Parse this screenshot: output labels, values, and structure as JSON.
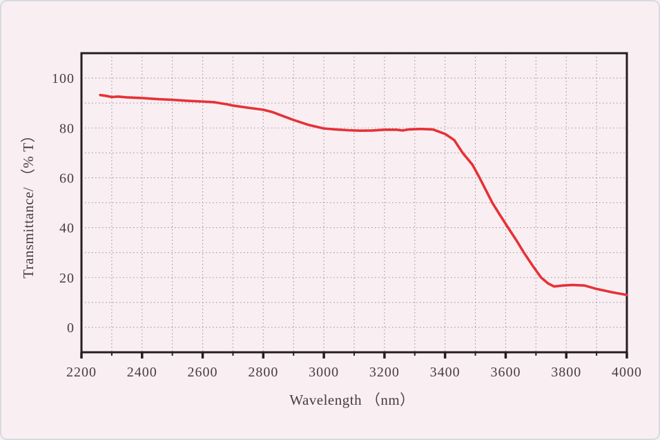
{
  "page": {
    "background_color": "#f9eff2",
    "frame_border_color": "#d6dae1"
  },
  "chart_data": {
    "type": "line",
    "title": "",
    "xlabel": "Wavelength （nm）",
    "ylabel": "Transmittance/ （% T）",
    "xlim": [
      2200,
      4000
    ],
    "ylim": [
      -10,
      110
    ],
    "x_major_ticks": [
      2200,
      2400,
      2600,
      2800,
      3000,
      3200,
      3400,
      3600,
      3800,
      4000
    ],
    "x_minor_ticks": [
      2300,
      2500,
      2700,
      2900,
      3100,
      3300,
      3500,
      3700,
      3900
    ],
    "y_ticks": [
      0,
      20,
      40,
      60,
      80,
      100
    ],
    "x_grid_start": 2300,
    "x_grid_end": 3900,
    "x_grid_step": 100,
    "y_grid_start": 0,
    "y_grid_end": 100,
    "y_grid_step": 10,
    "grid_style": "dotted",
    "grid_color": "#8d8490",
    "border_color": "#251e21",
    "line_color": "#e63137",
    "text_color": "#473c42",
    "legend": "none",
    "series": [
      {
        "name": "transmittance",
        "points": [
          [
            2262,
            93.2
          ],
          [
            2280,
            92.9
          ],
          [
            2300,
            92.4
          ],
          [
            2320,
            92.6
          ],
          [
            2350,
            92.3
          ],
          [
            2400,
            92.0
          ],
          [
            2450,
            91.6
          ],
          [
            2500,
            91.3
          ],
          [
            2550,
            90.9
          ],
          [
            2600,
            90.6
          ],
          [
            2640,
            90.3
          ],
          [
            2680,
            89.5
          ],
          [
            2700,
            89.0
          ],
          [
            2750,
            88.1
          ],
          [
            2800,
            87.3
          ],
          [
            2830,
            86.4
          ],
          [
            2860,
            85.0
          ],
          [
            2900,
            83.2
          ],
          [
            2950,
            81.2
          ],
          [
            3000,
            79.8
          ],
          [
            3040,
            79.4
          ],
          [
            3080,
            79.1
          ],
          [
            3120,
            78.9
          ],
          [
            3160,
            79.0
          ],
          [
            3200,
            79.3
          ],
          [
            3240,
            79.3
          ],
          [
            3260,
            79.0
          ],
          [
            3280,
            79.4
          ],
          [
            3320,
            79.6
          ],
          [
            3360,
            79.4
          ],
          [
            3400,
            77.6
          ],
          [
            3430,
            75.2
          ],
          [
            3458,
            70.0
          ],
          [
            3490,
            65.3
          ],
          [
            3514,
            60.0
          ],
          [
            3535,
            55.0
          ],
          [
            3556,
            50.0
          ],
          [
            3580,
            45.3
          ],
          [
            3608,
            40.0
          ],
          [
            3635,
            35.0
          ],
          [
            3660,
            30.0
          ],
          [
            3690,
            24.6
          ],
          [
            3717,
            20.0
          ],
          [
            3740,
            17.6
          ],
          [
            3760,
            16.4
          ],
          [
            3790,
            16.8
          ],
          [
            3820,
            17.0
          ],
          [
            3860,
            16.8
          ],
          [
            3900,
            15.4
          ],
          [
            3950,
            14.1
          ],
          [
            4000,
            13.0
          ]
        ]
      }
    ]
  }
}
